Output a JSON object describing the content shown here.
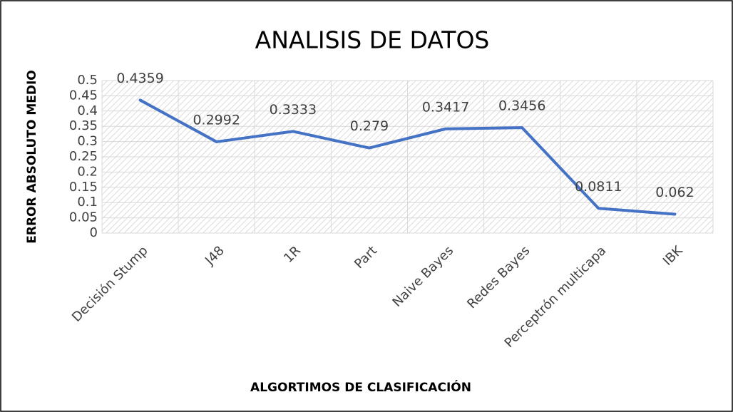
{
  "chart_data": {
    "type": "line",
    "title": "ANALISIS DE DATOS",
    "ylabel": "ERROR ABSOLUTO MEDIO",
    "xlabel": "ALGORTIMOS DE CLASIFICACIÓN",
    "categories": [
      "Decisión Stump",
      "J48",
      "1R",
      "Part",
      "Naive Bayes",
      "Redes Bayes",
      "Perceptrón multicapa",
      "IBK"
    ],
    "series": [
      {
        "name": "Error absoluto medio",
        "color": "#4472c4",
        "values": [
          0.4359,
          0.2992,
          0.3333,
          0.279,
          0.3417,
          0.3456,
          0.0811,
          0.062
        ]
      }
    ],
    "ylim": [
      0,
      0.5
    ],
    "yticks": [
      0,
      0.05,
      0.1,
      0.15,
      0.2,
      0.25,
      0.3,
      0.35,
      0.4,
      0.45,
      0.5
    ],
    "grid": true
  }
}
